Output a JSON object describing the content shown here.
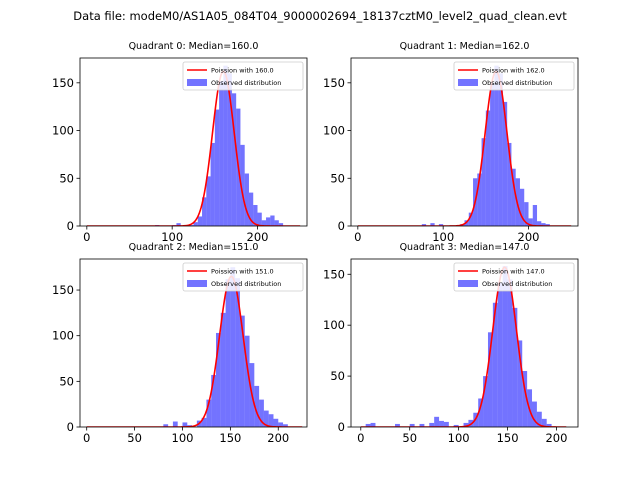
{
  "figure_title": "Data file: modeM0/AS1A05_084T04_9000002694_18137cztM0_level2_quad_clean.evt",
  "colors": {
    "poisson": "#ff0000",
    "observed": "#0000ff",
    "axes": "#000000",
    "background": "#ffffff"
  },
  "chart_data": [
    {
      "type": "bar",
      "title": "Quadrant 0: Median=160.0",
      "xlim": [
        -8,
        258
      ],
      "ylim": [
        0,
        176
      ],
      "xticks": [
        0,
        100,
        200
      ],
      "yticks": [
        0,
        50,
        100,
        150
      ],
      "bin_width": 5,
      "legend": {
        "position": "top-right",
        "labels": [
          "Poission with 160.0",
          "Observed distribution"
        ]
      },
      "histogram": [
        {
          "x": 80,
          "y": 1
        },
        {
          "x": 100,
          "y": 1
        },
        {
          "x": 105,
          "y": 3
        },
        {
          "x": 120,
          "y": 1
        },
        {
          "x": 125,
          "y": 4
        },
        {
          "x": 130,
          "y": 10
        },
        {
          "x": 135,
          "y": 30
        },
        {
          "x": 140,
          "y": 52
        },
        {
          "x": 145,
          "y": 87
        },
        {
          "x": 150,
          "y": 122
        },
        {
          "x": 155,
          "y": 152
        },
        {
          "x": 160,
          "y": 168
        },
        {
          "x": 165,
          "y": 160
        },
        {
          "x": 170,
          "y": 139
        },
        {
          "x": 175,
          "y": 123
        },
        {
          "x": 180,
          "y": 85
        },
        {
          "x": 185,
          "y": 55
        },
        {
          "x": 190,
          "y": 35
        },
        {
          "x": 195,
          "y": 22
        },
        {
          "x": 200,
          "y": 14
        },
        {
          "x": 205,
          "y": 6
        },
        {
          "x": 210,
          "y": 9
        },
        {
          "x": 215,
          "y": 11
        },
        {
          "x": 220,
          "y": 6
        },
        {
          "x": 225,
          "y": 3
        }
      ],
      "poisson": {
        "mean": 160.0,
        "n_points": 2,
        "peak": 162,
        "x_range": [
          0,
          250
        ]
      }
    },
    {
      "type": "bar",
      "title": "Quadrant 1: Median=162.0",
      "xlim": [
        -8,
        258
      ],
      "ylim": [
        0,
        176
      ],
      "xticks": [
        0,
        100,
        200
      ],
      "yticks": [
        0,
        50,
        100,
        150
      ],
      "bin_width": 5,
      "legend": {
        "position": "top-right",
        "labels": [
          "Poission with 162.0",
          "Observed distribution"
        ]
      },
      "histogram": [
        {
          "x": 75,
          "y": 2
        },
        {
          "x": 85,
          "y": 3
        },
        {
          "x": 95,
          "y": 2
        },
        {
          "x": 120,
          "y": 2
        },
        {
          "x": 125,
          "y": 6
        },
        {
          "x": 130,
          "y": 14
        },
        {
          "x": 135,
          "y": 50
        },
        {
          "x": 140,
          "y": 55
        },
        {
          "x": 145,
          "y": 92
        },
        {
          "x": 150,
          "y": 121
        },
        {
          "x": 155,
          "y": 150
        },
        {
          "x": 160,
          "y": 168
        },
        {
          "x": 165,
          "y": 160
        },
        {
          "x": 170,
          "y": 130
        },
        {
          "x": 175,
          "y": 87
        },
        {
          "x": 180,
          "y": 60
        },
        {
          "x": 185,
          "y": 50
        },
        {
          "x": 190,
          "y": 39
        },
        {
          "x": 195,
          "y": 25
        },
        {
          "x": 200,
          "y": 8
        },
        {
          "x": 205,
          "y": 22
        },
        {
          "x": 210,
          "y": 5
        },
        {
          "x": 215,
          "y": 3
        },
        {
          "x": 220,
          "y": 2
        }
      ],
      "poisson": {
        "mean": 162.0,
        "n_points": 2,
        "peak": 162,
        "x_range": [
          0,
          250
        ]
      }
    },
    {
      "type": "bar",
      "title": "Quadrant 2: Median=151.0",
      "xlim": [
        -7,
        230
      ],
      "ylim": [
        0,
        184
      ],
      "xticks": [
        0,
        50,
        100,
        150,
        200
      ],
      "yticks": [
        0,
        50,
        100,
        150
      ],
      "bin_width": 5,
      "legend": {
        "position": "top-right",
        "labels": [
          "Poission with 151.0",
          "Observed distribution"
        ]
      },
      "histogram": [
        {
          "x": 80,
          "y": 3
        },
        {
          "x": 90,
          "y": 6
        },
        {
          "x": 100,
          "y": 5
        },
        {
          "x": 105,
          "y": 2
        },
        {
          "x": 115,
          "y": 7
        },
        {
          "x": 120,
          "y": 10
        },
        {
          "x": 125,
          "y": 30
        },
        {
          "x": 130,
          "y": 57
        },
        {
          "x": 135,
          "y": 103
        },
        {
          "x": 140,
          "y": 125
        },
        {
          "x": 145,
          "y": 162
        },
        {
          "x": 150,
          "y": 175
        },
        {
          "x": 155,
          "y": 163
        },
        {
          "x": 160,
          "y": 122
        },
        {
          "x": 165,
          "y": 100
        },
        {
          "x": 170,
          "y": 70
        },
        {
          "x": 175,
          "y": 45
        },
        {
          "x": 180,
          "y": 30
        },
        {
          "x": 185,
          "y": 18
        },
        {
          "x": 190,
          "y": 14
        },
        {
          "x": 195,
          "y": 9
        },
        {
          "x": 200,
          "y": 5
        },
        {
          "x": 205,
          "y": 3
        }
      ],
      "poisson": {
        "mean": 151.0,
        "n_points": 2,
        "peak": 165,
        "x_range": [
          0,
          225
        ]
      }
    },
    {
      "type": "bar",
      "title": "Quadrant 3: Median=147.0",
      "xlim": [
        -10,
        222
      ],
      "ylim": [
        0,
        165
      ],
      "xticks": [
        0,
        50,
        100,
        150,
        200
      ],
      "yticks": [
        0,
        50,
        100,
        150
      ],
      "bin_width": 5,
      "legend": {
        "position": "top-right",
        "labels": [
          "Poission with 147.0",
          "Observed distribution"
        ]
      },
      "histogram": [
        {
          "x": 5,
          "y": 3
        },
        {
          "x": 10,
          "y": 4
        },
        {
          "x": 35,
          "y": 3
        },
        {
          "x": 50,
          "y": 3
        },
        {
          "x": 60,
          "y": 3
        },
        {
          "x": 70,
          "y": 4
        },
        {
          "x": 75,
          "y": 10
        },
        {
          "x": 80,
          "y": 6
        },
        {
          "x": 85,
          "y": 5
        },
        {
          "x": 95,
          "y": 2
        },
        {
          "x": 105,
          "y": 4
        },
        {
          "x": 110,
          "y": 7
        },
        {
          "x": 115,
          "y": 14
        },
        {
          "x": 120,
          "y": 28
        },
        {
          "x": 125,
          "y": 50
        },
        {
          "x": 130,
          "y": 93
        },
        {
          "x": 135,
          "y": 122
        },
        {
          "x": 140,
          "y": 142
        },
        {
          "x": 145,
          "y": 158
        },
        {
          "x": 150,
          "y": 145
        },
        {
          "x": 155,
          "y": 117
        },
        {
          "x": 160,
          "y": 85
        },
        {
          "x": 165,
          "y": 55
        },
        {
          "x": 170,
          "y": 37
        },
        {
          "x": 175,
          "y": 25
        },
        {
          "x": 180,
          "y": 15
        },
        {
          "x": 185,
          "y": 8
        },
        {
          "x": 190,
          "y": 3
        }
      ],
      "poisson": {
        "mean": 147.0,
        "n_points": 2,
        "peak": 157,
        "x_range": [
          0,
          210
        ]
      }
    }
  ]
}
